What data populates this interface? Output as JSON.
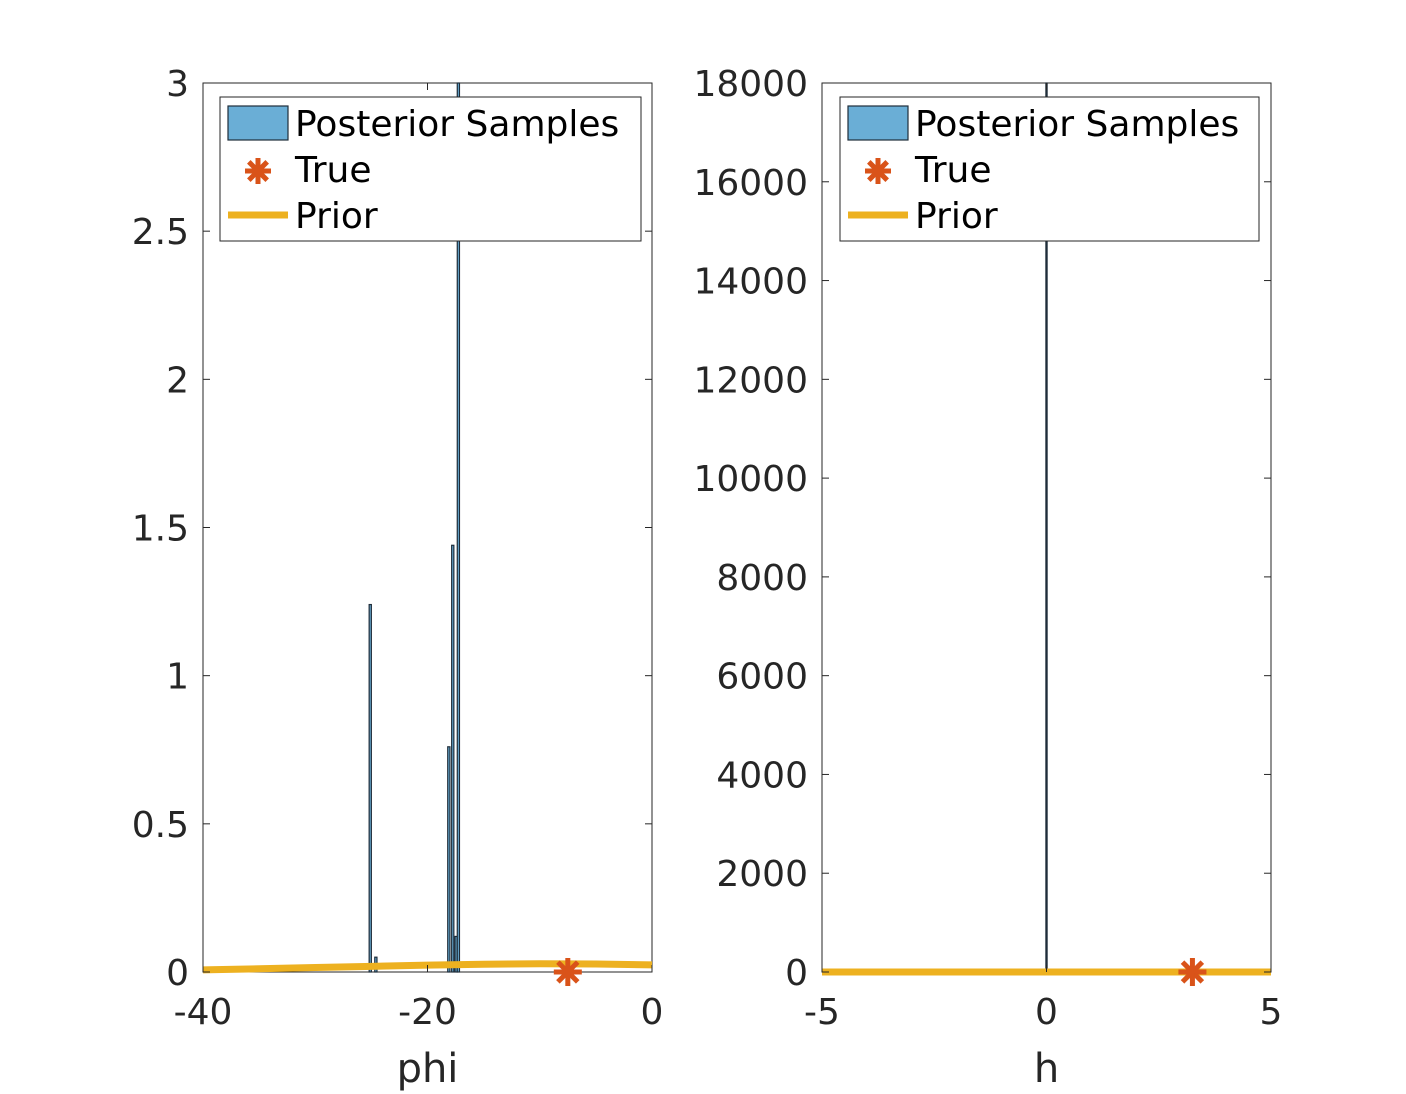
{
  "colors": {
    "posterior_face": "#6aaed6",
    "posterior_edge": "#1f2d3a",
    "true_marker": "#d95319",
    "prior_line": "#edb120",
    "axis": "#262626"
  },
  "chart_data": [
    {
      "type": "bar",
      "xlabel": "phi",
      "ylabel": "",
      "xlim": [
        -40,
        0
      ],
      "ylim": [
        0,
        3
      ],
      "xticks": [
        -40,
        -20,
        0
      ],
      "xtick_labels": [
        "-40",
        "-20",
        "0"
      ],
      "yticks": [
        0,
        0.5,
        1,
        1.5,
        2,
        2.5,
        3
      ],
      "ytick_labels": [
        "0",
        "0.5",
        "1",
        "1.5",
        "2",
        "2.5",
        "3"
      ],
      "grid": false,
      "legend_placement": "top",
      "legend": [
        "Posterior Samples",
        "True",
        "Prior"
      ],
      "histogram": {
        "name": "Posterior Samples",
        "bins": [
          {
            "x": -25.1,
            "value": 1.24
          },
          {
            "x": -24.6,
            "value": 0.05
          },
          {
            "x": -18.1,
            "value": 0.76
          },
          {
            "x": -17.75,
            "value": 1.44
          },
          {
            "x": -17.45,
            "value": 0.12
          },
          {
            "x": -17.25,
            "value": 3.0
          }
        ]
      },
      "true_value": {
        "name": "True",
        "x": -7.5,
        "y": 0
      },
      "prior": {
        "name": "Prior",
        "x": [
          -40,
          -35,
          -30,
          -25,
          -20,
          -15,
          -10,
          -5,
          0
        ],
        "y": [
          0.007,
          0.011,
          0.015,
          0.019,
          0.023,
          0.026,
          0.028,
          0.027,
          0.024
        ]
      }
    },
    {
      "type": "bar",
      "xlabel": "h",
      "ylabel": "",
      "xlim": [
        -5,
        5
      ],
      "ylim": [
        0,
        18000
      ],
      "xticks": [
        -5,
        0,
        5
      ],
      "xtick_labels": [
        "-5",
        "0",
        "5"
      ],
      "yticks": [
        0,
        2000,
        4000,
        6000,
        8000,
        10000,
        12000,
        14000,
        16000,
        18000
      ],
      "ytick_labels": [
        "0",
        "2000",
        "4000",
        "6000",
        "8000",
        "10000",
        "12000",
        "14000",
        "16000",
        "18000"
      ],
      "grid": false,
      "legend_placement": "top",
      "legend": [
        "Posterior Samples",
        "True",
        "Prior"
      ],
      "histogram": {
        "name": "Posterior Samples",
        "bins": [
          {
            "x": 0,
            "value": 18000
          }
        ]
      },
      "true_value": {
        "name": "True",
        "x": 3.25,
        "y": 0
      },
      "prior": {
        "name": "Prior",
        "x": [
          -5,
          5
        ],
        "y": [
          0,
          0
        ]
      }
    }
  ]
}
